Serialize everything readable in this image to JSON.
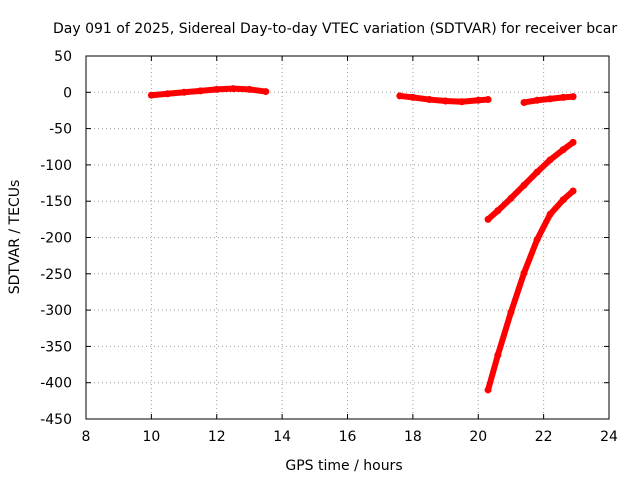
{
  "chart_data": {
    "type": "line",
    "title": "Day 091 of 2025, Sidereal Day-to-day VTEC variation (SDTVAR) for receiver bcar",
    "xlabel": "GPS time / hours",
    "ylabel": "SDTVAR / TECUs",
    "xlim": [
      8,
      24
    ],
    "ylim": [
      -450,
      50
    ],
    "xticks": [
      8,
      10,
      12,
      14,
      16,
      18,
      20,
      22,
      24
    ],
    "yticks": [
      50,
      0,
      -50,
      -100,
      -150,
      -200,
      -250,
      -300,
      -350,
      -400,
      -450
    ],
    "grid": true,
    "color": "#ff0000",
    "series": [
      {
        "x": [
          10.0,
          10.5,
          11.0,
          11.5,
          12.0,
          12.5,
          13.0,
          13.5
        ],
        "y": [
          -4,
          -2,
          0,
          2,
          4,
          5,
          4,
          1
        ]
      },
      {
        "x": [
          17.6,
          18.0,
          18.5,
          19.0,
          19.5,
          20.0,
          20.3
        ],
        "y": [
          -5,
          -7,
          -10,
          -12,
          -13,
          -11,
          -10
        ]
      },
      {
        "x": [
          21.4,
          21.8,
          22.2,
          22.6,
          22.9
        ],
        "y": [
          -14,
          -11,
          -9,
          -7,
          -6
        ]
      },
      {
        "x": [
          20.3,
          20.6,
          21.0,
          21.4,
          21.8,
          22.2,
          22.6,
          22.9
        ],
        "y": [
          -175,
          -163,
          -146,
          -128,
          -110,
          -93,
          -79,
          -69
        ]
      },
      {
        "x": [
          20.3,
          20.6,
          21.0,
          21.4,
          21.8,
          22.2,
          22.6,
          22.9
        ],
        "y": [
          -410,
          -362,
          -303,
          -249,
          -203,
          -168,
          -148,
          -136
        ]
      }
    ]
  }
}
